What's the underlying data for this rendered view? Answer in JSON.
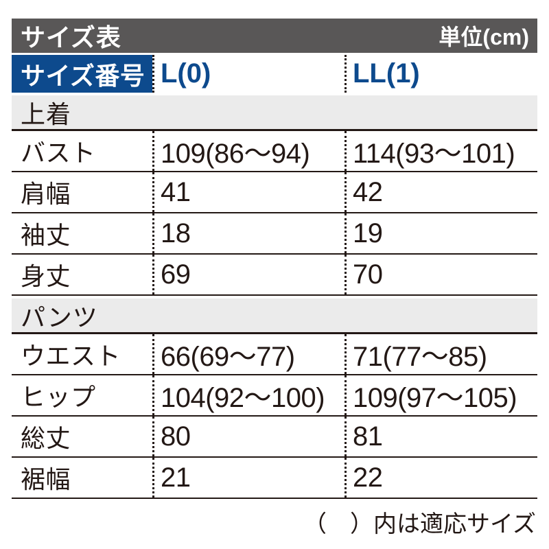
{
  "chart_data": {
    "type": "table",
    "title": "サイズ表",
    "unit": "単位(cm)",
    "columns": [
      "サイズ番号",
      "L(0)",
      "LL(1)"
    ],
    "sections": [
      {
        "name": "上着",
        "rows": [
          [
            "バスト",
            "109(86〜94)",
            "114(93〜101)"
          ],
          [
            "肩幅",
            "41",
            "42"
          ],
          [
            "袖丈",
            "18",
            "19"
          ],
          [
            "身丈",
            "69",
            "70"
          ]
        ]
      },
      {
        "name": "パンツ",
        "rows": [
          [
            "ウエスト",
            "66(69〜77)",
            "71(77〜85)"
          ],
          [
            "ヒップ",
            "104(92〜100)",
            "109(97〜105)"
          ],
          [
            "総丈",
            "80",
            "81"
          ],
          [
            "裾幅",
            "21",
            "22"
          ]
        ]
      }
    ],
    "footnote": "（　）内は適応サイズ"
  },
  "colors": {
    "titlebar_bg": "#595757",
    "accent_blue": "#0d4a8d",
    "section_band_bg": "#ebebeb",
    "line": "#231815"
  }
}
